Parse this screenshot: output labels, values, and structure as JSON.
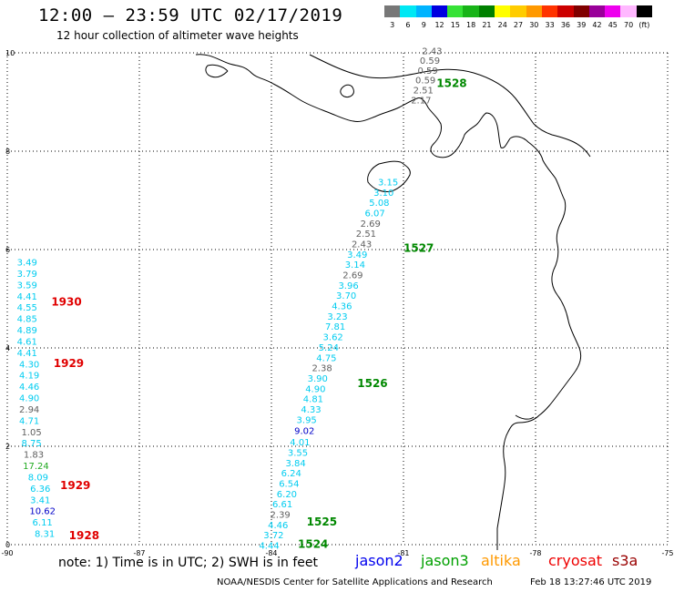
{
  "header": {
    "title": "12:00 – 23:59 UTC 02/17/2019",
    "subtitle": "12 hour collection of altimeter wave heights"
  },
  "legend": {
    "unit": "(ft)",
    "items": [
      {
        "label": "3",
        "color": "#777777"
      },
      {
        "label": "6",
        "color": "#00e8f4"
      },
      {
        "label": "9",
        "color": "#00b4ff"
      },
      {
        "label": "12",
        "color": "#0000e0"
      },
      {
        "label": "15",
        "color": "#36e236"
      },
      {
        "label": "18",
        "color": "#18b418"
      },
      {
        "label": "21",
        "color": "#008000"
      },
      {
        "label": "24",
        "color": "#ffff00"
      },
      {
        "label": "27",
        "color": "#ffcc00"
      },
      {
        "label": "30",
        "color": "#ff9900"
      },
      {
        "label": "33",
        "color": "#ff3300"
      },
      {
        "label": "36",
        "color": "#cc0000"
      },
      {
        "label": "39",
        "color": "#800000"
      },
      {
        "label": "42",
        "color": "#990099"
      },
      {
        "label": "45",
        "color": "#ee00ee"
      },
      {
        "label": "70",
        "color": "#ffb8ff"
      },
      {
        "label": "",
        "color": "#000000"
      }
    ]
  },
  "axes": {
    "x_ticks": [
      "-90",
      "-87",
      "-84",
      "-81",
      "-78",
      "-75"
    ],
    "y_ticks": [
      "10",
      "8",
      "6",
      "4",
      "2",
      "0"
    ],
    "lon_range": [
      -90,
      -75
    ],
    "lat_range": [
      0,
      10
    ]
  },
  "tracks": [
    {
      "time": "1930",
      "satellite": "s3a",
      "time_color": "#e00000",
      "label_lon": -89.0,
      "label_lat": 4.95,
      "points": [
        {
          "lon": -89.55,
          "lat": 5.75,
          "v": "3.49",
          "c": "#00ccf0"
        },
        {
          "lon": -89.55,
          "lat": 5.52,
          "v": "3.79",
          "c": "#00ccf0"
        },
        {
          "lon": -89.55,
          "lat": 5.29,
          "v": "3.59",
          "c": "#00ccf0"
        },
        {
          "lon": -89.55,
          "lat": 5.06,
          "v": "4.41",
          "c": "#00ccf0"
        },
        {
          "lon": -89.55,
          "lat": 4.83,
          "v": "4.55",
          "c": "#00ccf0"
        },
        {
          "lon": -89.55,
          "lat": 4.6,
          "v": "4.85",
          "c": "#00ccf0"
        },
        {
          "lon": -89.55,
          "lat": 4.37,
          "v": "4.89",
          "c": "#00ccf0"
        },
        {
          "lon": -89.55,
          "lat": 4.14,
          "v": "4.61",
          "c": "#00ccf0"
        },
        {
          "lon": -89.55,
          "lat": 3.91,
          "v": "4.41",
          "c": "#00ccf0"
        }
      ]
    },
    {
      "time": "1929",
      "satellite": "s3a",
      "time_color": "#e00000",
      "label_lon": -88.95,
      "label_lat": 3.7,
      "points": [
        {
          "lon": -89.5,
          "lat": 3.68,
          "v": "4.30",
          "c": "#00ccf0"
        },
        {
          "lon": -89.5,
          "lat": 3.45,
          "v": "4.19",
          "c": "#00ccf0"
        },
        {
          "lon": -89.5,
          "lat": 3.22,
          "v": "4.46",
          "c": "#00ccf0"
        },
        {
          "lon": -89.5,
          "lat": 2.99,
          "v": "4.90",
          "c": "#00ccf0"
        },
        {
          "lon": -89.5,
          "lat": 2.76,
          "v": "2.94",
          "c": "#606060"
        },
        {
          "lon": -89.5,
          "lat": 2.53,
          "v": "4.71",
          "c": "#00ccf0"
        },
        {
          "lon": -89.45,
          "lat": 2.3,
          "v": "1.05",
          "c": "#606060"
        },
        {
          "lon": -89.45,
          "lat": 2.07,
          "v": "8.75",
          "c": "#00ccf0"
        }
      ]
    },
    {
      "time": "1929",
      "satellite": "s3a",
      "time_color": "#e00000",
      "label_lon": -88.8,
      "label_lat": 1.22,
      "points": [
        {
          "lon": -89.4,
          "lat": 1.84,
          "v": "1.83",
          "c": "#606060"
        },
        {
          "lon": -89.35,
          "lat": 1.61,
          "v": "17.24",
          "c": "#22aa22"
        },
        {
          "lon": -89.3,
          "lat": 1.38,
          "v": "8.09",
          "c": "#00ccf0"
        },
        {
          "lon": -89.25,
          "lat": 1.15,
          "v": "6.36",
          "c": "#00ccf0"
        },
        {
          "lon": -89.25,
          "lat": 0.92,
          "v": "3.41",
          "c": "#00ccf0"
        }
      ]
    },
    {
      "time": "1928",
      "satellite": "s3a",
      "time_color": "#e00000",
      "label_lon": -88.6,
      "label_lat": 0.2,
      "points": [
        {
          "lon": -89.2,
          "lat": 0.69,
          "v": "10.62",
          "c": "#0000c8"
        },
        {
          "lon": -89.2,
          "lat": 0.46,
          "v": "6.11",
          "c": "#00ccf0"
        },
        {
          "lon": -89.15,
          "lat": 0.23,
          "v": "8.31",
          "c": "#00ccf0"
        }
      ]
    },
    {
      "time": "1528",
      "satellite": "jason3",
      "time_color": "#008800",
      "label_lon": -80.25,
      "label_lat": 9.4,
      "points": [
        {
          "lon": -80.35,
          "lat": 10.05,
          "v": "2.43",
          "c": "#606060"
        },
        {
          "lon": -80.4,
          "lat": 9.85,
          "v": "0.59",
          "c": "#606060"
        },
        {
          "lon": -80.45,
          "lat": 9.65,
          "v": "0.59",
          "c": "#606060"
        },
        {
          "lon": -80.5,
          "lat": 9.45,
          "v": "0.59",
          "c": "#606060"
        },
        {
          "lon": -80.55,
          "lat": 9.25,
          "v": "2.51",
          "c": "#606060"
        },
        {
          "lon": -80.6,
          "lat": 9.05,
          "v": "2.17",
          "c": "#606060"
        }
      ]
    },
    {
      "time": "1527",
      "satellite": "jason3",
      "time_color": "#008800",
      "label_lon": -81.0,
      "label_lat": 6.05,
      "points": [
        {
          "lon": -81.35,
          "lat": 7.38,
          "v": "3.15",
          "c": "#00ccf0"
        },
        {
          "lon": -81.45,
          "lat": 7.17,
          "v": "3.10",
          "c": "#00ccf0"
        },
        {
          "lon": -81.55,
          "lat": 6.96,
          "v": "5.08",
          "c": "#00ccf0"
        },
        {
          "lon": -81.65,
          "lat": 6.75,
          "v": "6.07",
          "c": "#00ccf0"
        },
        {
          "lon": -81.75,
          "lat": 6.54,
          "v": "2.69",
          "c": "#606060"
        },
        {
          "lon": -81.85,
          "lat": 6.33,
          "v": "2.51",
          "c": "#606060"
        },
        {
          "lon": -81.95,
          "lat": 6.12,
          "v": "2.43",
          "c": "#606060"
        },
        {
          "lon": -82.05,
          "lat": 5.91,
          "v": "3.49",
          "c": "#00ccf0"
        },
        {
          "lon": -82.1,
          "lat": 5.7,
          "v": "3.14",
          "c": "#00ccf0"
        },
        {
          "lon": -82.15,
          "lat": 5.49,
          "v": "2.69",
          "c": "#606060"
        },
        {
          "lon": -82.25,
          "lat": 5.28,
          "v": "3.96",
          "c": "#00ccf0"
        },
        {
          "lon": -82.3,
          "lat": 5.07,
          "v": "3.70",
          "c": "#00ccf0"
        },
        {
          "lon": -82.4,
          "lat": 4.86,
          "v": "4.36",
          "c": "#00ccf0"
        },
        {
          "lon": -82.5,
          "lat": 4.65,
          "v": "3.23",
          "c": "#00ccf0"
        },
        {
          "lon": -82.55,
          "lat": 4.44,
          "v": "7.81",
          "c": "#00ccf0"
        },
        {
          "lon": -82.6,
          "lat": 4.23,
          "v": "3.62",
          "c": "#00ccf0"
        },
        {
          "lon": -82.7,
          "lat": 4.02,
          "v": "5.24",
          "c": "#00ccf0"
        },
        {
          "lon": -82.75,
          "lat": 3.81,
          "v": "4.75",
          "c": "#00ccf0"
        }
      ]
    },
    {
      "time": "1526",
      "satellite": "jason3",
      "time_color": "#008800",
      "label_lon": -82.05,
      "label_lat": 3.3,
      "points": [
        {
          "lon": -82.85,
          "lat": 3.6,
          "v": "2.38",
          "c": "#606060"
        },
        {
          "lon": -82.95,
          "lat": 3.39,
          "v": "3.90",
          "c": "#00ccf0"
        },
        {
          "lon": -83.0,
          "lat": 3.18,
          "v": "4.90",
          "c": "#00ccf0"
        },
        {
          "lon": -83.05,
          "lat": 2.97,
          "v": "4.81",
          "c": "#00ccf0"
        },
        {
          "lon": -83.1,
          "lat": 2.76,
          "v": "4.33",
          "c": "#00ccf0"
        },
        {
          "lon": -83.2,
          "lat": 2.55,
          "v": "3.95",
          "c": "#00ccf0"
        },
        {
          "lon": -83.25,
          "lat": 2.32,
          "v": "9.02",
          "c": "#0000c8"
        },
        {
          "lon": -83.35,
          "lat": 2.09,
          "v": "4.01",
          "c": "#00ccf0"
        },
        {
          "lon": -83.4,
          "lat": 1.88,
          "v": "3.55",
          "c": "#00ccf0"
        },
        {
          "lon": -83.45,
          "lat": 1.67,
          "v": "3.84",
          "c": "#00ccf0"
        }
      ]
    },
    {
      "time": "1525",
      "satellite": "jason3",
      "time_color": "#008800",
      "label_lon": -83.2,
      "label_lat": 0.48,
      "points": [
        {
          "lon": -83.55,
          "lat": 1.46,
          "v": "6.24",
          "c": "#00ccf0"
        },
        {
          "lon": -83.6,
          "lat": 1.25,
          "v": "6.54",
          "c": "#00ccf0"
        },
        {
          "lon": -83.65,
          "lat": 1.04,
          "v": "6.20",
          "c": "#00ccf0"
        },
        {
          "lon": -83.75,
          "lat": 0.83,
          "v": "6.61",
          "c": "#00ccf0"
        },
        {
          "lon": -83.8,
          "lat": 0.62,
          "v": "2.39",
          "c": "#606060"
        },
        {
          "lon": -83.85,
          "lat": 0.41,
          "v": "4.46",
          "c": "#00ccf0"
        }
      ]
    },
    {
      "time": "1524",
      "satellite": "jason3",
      "time_color": "#008800",
      "label_lon": -83.4,
      "label_lat": 0.03,
      "points": [
        {
          "lon": -83.95,
          "lat": 0.2,
          "v": "3.72",
          "c": "#00ccf0"
        },
        {
          "lon": -84.05,
          "lat": -0.01,
          "v": "4.44",
          "c": "#00ccf0"
        }
      ]
    }
  ],
  "note": {
    "text": "note:  1) Time is in UTC;  2) SWH is in feet",
    "satellites": [
      {
        "name": "jason2",
        "color": "#0000ee"
      },
      {
        "name": "jason3",
        "color": "#00a000"
      },
      {
        "name": "altika",
        "color": "#ff9900"
      },
      {
        "name": "cryosat",
        "color": "#ee0000"
      },
      {
        "name": "s3a",
        "color": "#990000"
      }
    ]
  },
  "footer": {
    "credit": "NOAA/NESDIS Center for Satellite Applications and Research",
    "timestamp": "Feb 18 13:27:46 UTC 2019"
  }
}
